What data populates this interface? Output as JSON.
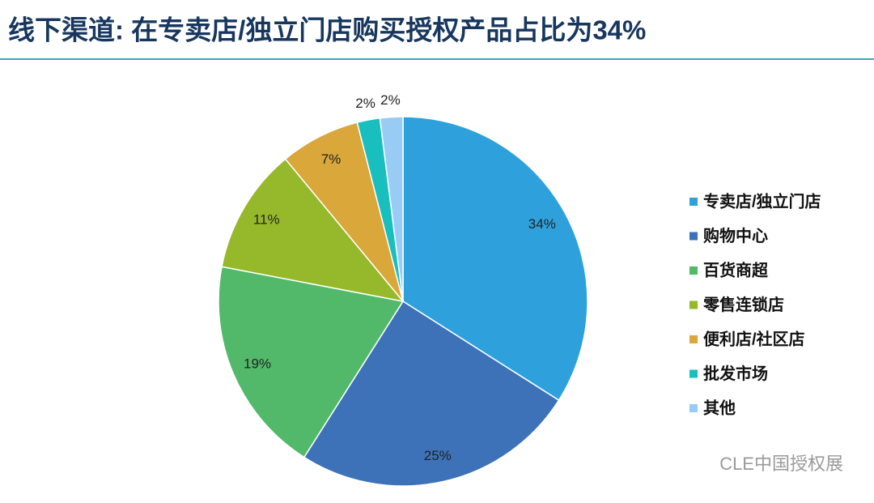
{
  "chart_data": {
    "type": "pie",
    "title": "线下渠道: 在专卖店/独立门店购买授权产品占比为34%",
    "categories": [
      "专卖店/独立门店",
      "购物中心",
      "百货商超",
      "零售连锁店",
      "便利店/社区店",
      "批发市场",
      "其他"
    ],
    "values": [
      34,
      25,
      19,
      11,
      7,
      2,
      2
    ],
    "value_labels": [
      "34%",
      "25%",
      "19%",
      "11%",
      "7%",
      "2%",
      "2%"
    ],
    "colors": [
      "#2ea1dc",
      "#3d72b8",
      "#52b96a",
      "#95b92a",
      "#d9a73a",
      "#19bfbf",
      "#99ccf5"
    ],
    "legend": "right",
    "watermark": "CLE中国授权展"
  }
}
